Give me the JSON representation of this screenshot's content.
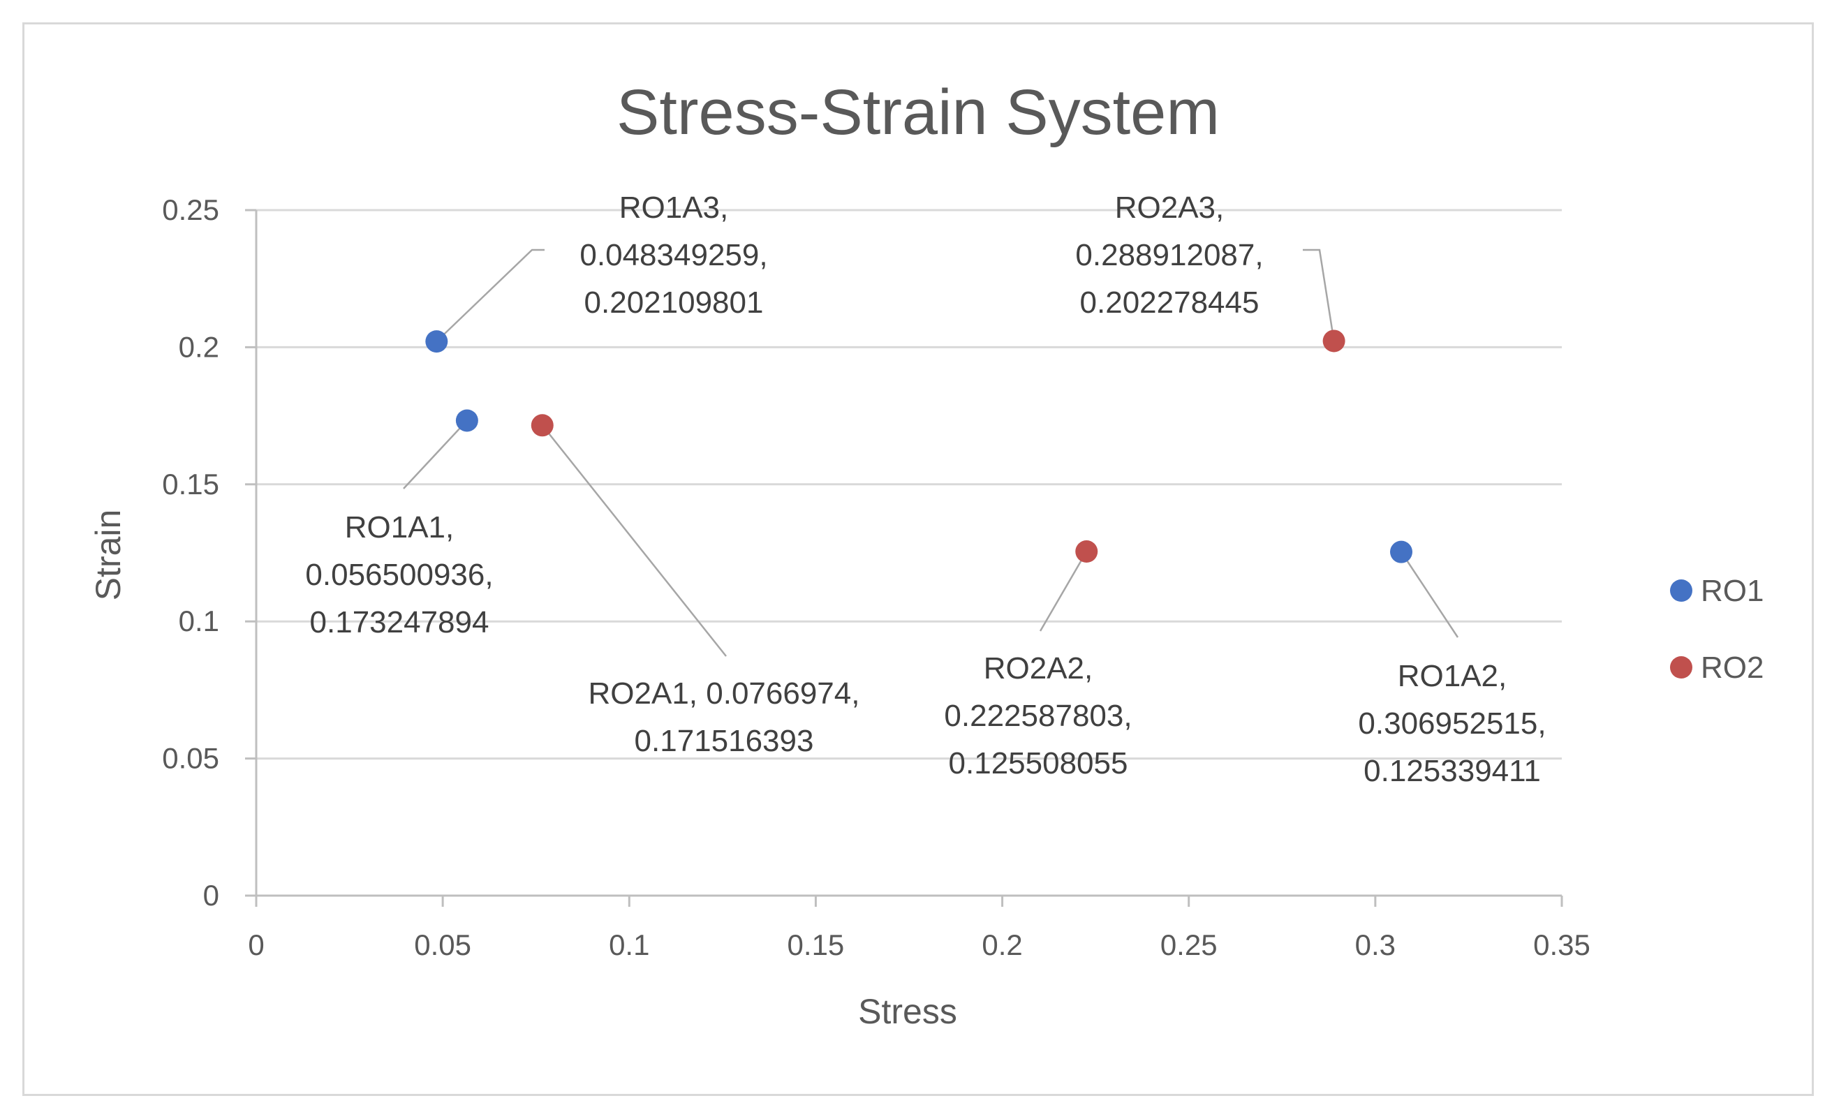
{
  "chart_data": {
    "type": "scatter",
    "title": "Stress-Strain System",
    "xlabel": "Stress",
    "ylabel": "Strain",
    "xlim": [
      0,
      0.35
    ],
    "ylim": [
      0,
      0.25
    ],
    "x_ticks": [
      "0",
      "0.05",
      "0.1",
      "0.15",
      "0.2",
      "0.25",
      "0.3",
      "0.35"
    ],
    "y_ticks": [
      "0",
      "0.05",
      "0.1",
      "0.15",
      "0.2",
      "0.25"
    ],
    "grid": true,
    "legend_position": "right",
    "series": [
      {
        "name": "RO1",
        "color": "#4472c4",
        "points": [
          {
            "id": "RO1A1",
            "x": 0.056500936,
            "y": 0.173247894,
            "label_lines": [
              "RO1A1,",
              "0.056500936,",
              "0.173247894"
            ]
          },
          {
            "id": "RO1A2",
            "x": 0.306952515,
            "y": 0.125339411,
            "label_lines": [
              "RO1A2,",
              "0.306952515,",
              "0.125339411"
            ]
          },
          {
            "id": "RO1A3",
            "x": 0.048349259,
            "y": 0.202109801,
            "label_lines": [
              "RO1A3,",
              "0.048349259,",
              "0.202109801"
            ]
          }
        ]
      },
      {
        "name": "RO2",
        "color": "#c0504d",
        "points": [
          {
            "id": "RO2A1",
            "x": 0.0766974,
            "y": 0.171516393,
            "label_lines": [
              "RO2A1, 0.0766974,",
              "0.171516393"
            ]
          },
          {
            "id": "RO2A2",
            "x": 0.222587803,
            "y": 0.125508055,
            "label_lines": [
              "RO2A2,",
              "0.222587803,",
              "0.125508055"
            ]
          },
          {
            "id": "RO2A3",
            "x": 0.288912087,
            "y": 0.202278445,
            "label_lines": [
              "RO2A3,",
              "0.288912087,",
              "0.202278445"
            ]
          }
        ]
      }
    ]
  }
}
